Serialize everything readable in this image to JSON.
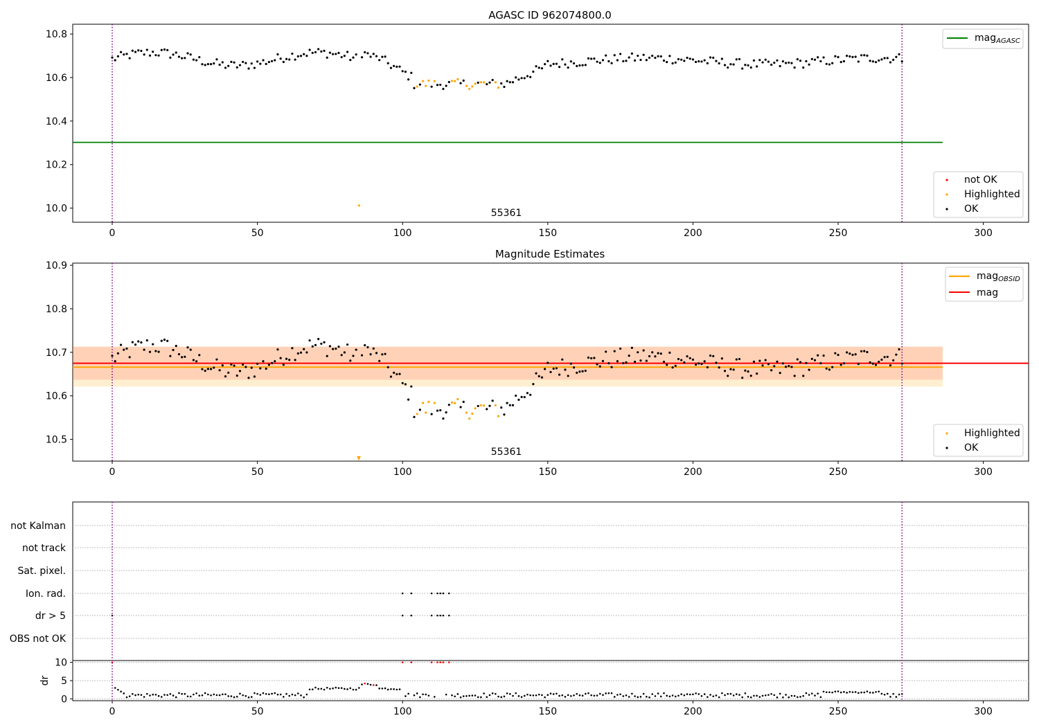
{
  "chart_data": [
    {
      "type": "scatter",
      "title": "AGASC ID 962074800.0",
      "xlim": [
        -13.6,
        315.6
      ],
      "ylim": [
        9.935,
        10.845
      ],
      "yticks": [
        10.0,
        10.2,
        10.4,
        10.6,
        10.8
      ],
      "xticks": [
        0,
        50,
        100,
        150,
        200,
        250,
        300
      ],
      "annotation": "55361",
      "mag_agasc": 10.302,
      "legend_lines": [
        {
          "label_main": "mag",
          "label_sub": "AGASC",
          "color": "#008000"
        }
      ],
      "legend_points": [
        {
          "label": "not OK",
          "color": "#ff0000"
        },
        {
          "label": "Highlighted",
          "color": "#ffa500"
        },
        {
          "label": "OK",
          "color": "#000000"
        }
      ]
    },
    {
      "type": "scatter",
      "title": "Magnitude Estimates",
      "xlim": [
        -13.6,
        315.6
      ],
      "ylim": [
        10.45,
        10.905
      ],
      "yticks": [
        10.5,
        10.6,
        10.7,
        10.8,
        10.9
      ],
      "xticks": [
        0,
        50,
        100,
        150,
        200,
        250,
        300
      ],
      "annotation": "55361",
      "mag": 10.675,
      "mag_band": [
        10.637,
        10.713
      ],
      "mag_obsid": 10.666,
      "mag_obsid_band": [
        10.621,
        10.713
      ],
      "legend_lines": [
        {
          "label_main": "mag",
          "label_sub": "OBSID",
          "color": "#ffa500"
        },
        {
          "label_main": "mag",
          "label_sub": "",
          "color": "#ff0000"
        }
      ],
      "legend_points": [
        {
          "label": "Highlighted",
          "color": "#ffa500"
        },
        {
          "label": "OK",
          "color": "#000000"
        }
      ]
    },
    {
      "type": "scatter",
      "title": "",
      "flag_labels": [
        "not Kalman",
        "not track",
        "Sat. pixel.",
        "Ion. rad.",
        "dr > 5",
        "OBS not OK"
      ],
      "dr_ylabel": "dr",
      "dr_yticks": [
        0,
        5,
        10
      ],
      "xticks": [
        0,
        50,
        100,
        150,
        200,
        250,
        300
      ]
    }
  ],
  "obs_bounds": [
    0,
    272
  ],
  "highlighted_x": [
    85,
    105,
    107,
    108,
    109,
    111,
    117,
    118,
    119,
    122,
    123,
    124,
    125,
    127,
    128,
    132,
    133
  ]
}
